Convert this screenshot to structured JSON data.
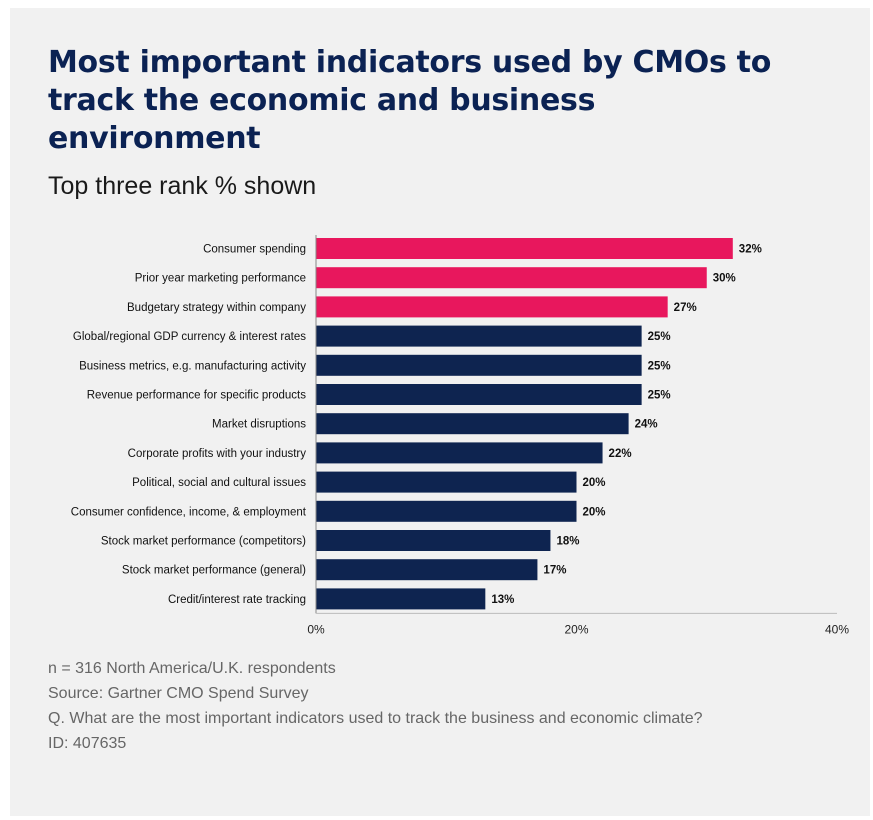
{
  "title": "Most important indicators used by CMOs to track the economic and business environment",
  "subtitle": "Top three rank % shown",
  "colors": {
    "highlight": "#e8175d",
    "base": "#0e2450",
    "background": "#f1f1f1"
  },
  "chart_data": {
    "type": "bar",
    "orientation": "horizontal",
    "categories": [
      "Consumer spending",
      "Prior year marketing performance",
      "Budgetary strategy within company",
      "Global/regional GDP currency & interest rates",
      "Business metrics, e.g. manufacturing activity",
      "Revenue performance for specific products",
      "Market disruptions",
      "Corporate profits with your industry",
      "Political, social and cultural issues",
      "Consumer confidence, income, & employment",
      "Stock market performance (competitors)",
      "Stock market performance (general)",
      "Credit/interest rate tracking"
    ],
    "values": [
      32,
      30,
      27,
      25,
      25,
      25,
      24,
      22,
      20,
      20,
      18,
      17,
      13
    ],
    "value_labels": [
      "32%",
      "30%",
      "27%",
      "25%",
      "25%",
      "25%",
      "24%",
      "22%",
      "20%",
      "20%",
      "18%",
      "17%",
      "13%"
    ],
    "highlighted": [
      true,
      true,
      true,
      false,
      false,
      false,
      false,
      false,
      false,
      false,
      false,
      false,
      false
    ],
    "xlim": [
      0,
      40
    ],
    "xticks": [
      "0%",
      "20%",
      "40%"
    ],
    "xlabel": "",
    "ylabel": "",
    "grid": false,
    "legend": "none"
  },
  "notes": {
    "line1": "n = 316 North America/U.K. respondents",
    "line2": "Source: Gartner CMO Spend Survey",
    "line3": "Q. What are the most important indicators used to track the business and economic climate?",
    "line4": "ID: 407635"
  }
}
